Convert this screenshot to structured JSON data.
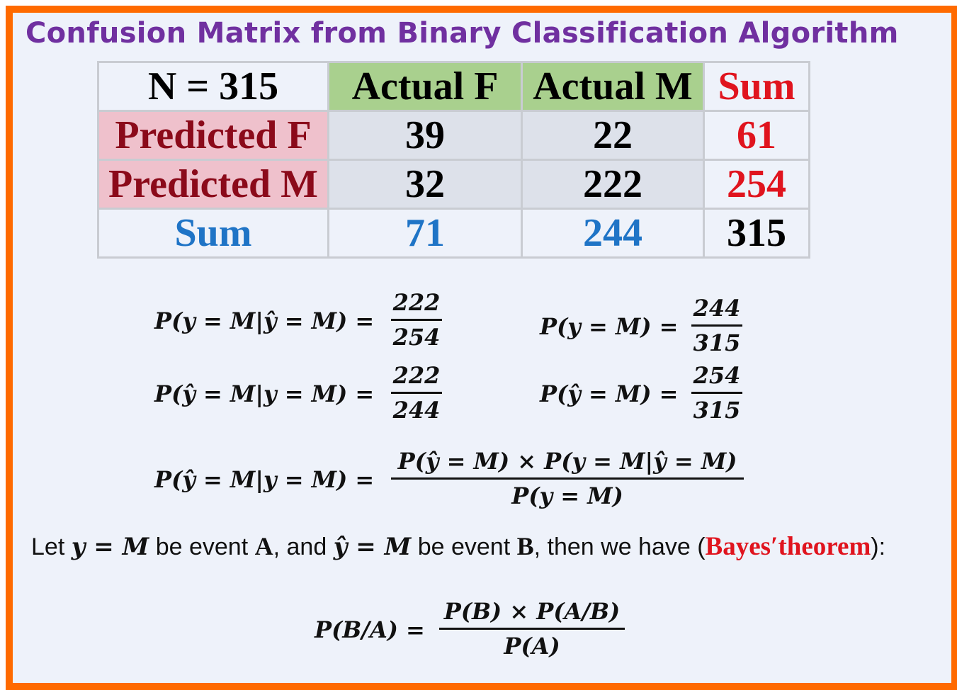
{
  "title": "Confusion Matrix from Binary Classification Algorithm",
  "table": {
    "corner": "N = 315",
    "col_headers": [
      "Actual F",
      "Actual M",
      "Sum"
    ],
    "rows": [
      {
        "label": "Predicted F",
        "values": [
          "39",
          "22"
        ],
        "sum": "61"
      },
      {
        "label": "Predicted M",
        "values": [
          "32",
          "222"
        ],
        "sum": "254"
      }
    ],
    "sum_row": {
      "label": "Sum",
      "values": [
        "71",
        "244"
      ],
      "total": "315"
    }
  },
  "formulas": {
    "f1_lhs": "P(y = M|ŷ = M) =",
    "f1_num": "222",
    "f1_den": "254",
    "f2_lhs": "P(y = M) =",
    "f2_num": "244",
    "f2_den": "315",
    "f3_lhs": "P(ŷ = M|y = M) =",
    "f3_num": "222",
    "f3_den": "244",
    "f4_lhs": "P(ŷ = M) =",
    "f4_num": "254",
    "f4_den": "315",
    "f5_lhs": "P(ŷ = M|y = M) =",
    "f5_num": "P(ŷ = M) × P(y = M|ŷ = M)",
    "f5_den": "P(y = M)"
  },
  "let_line": {
    "p1": "Let ",
    "m1": "y = M",
    "p2": " be event ",
    "b1": "A",
    "p3": ", and ",
    "m2": "ŷ = M",
    "p4": " be event ",
    "b2": "B",
    "p5": ", then we have (",
    "bayes": "Bayes′theorem",
    "p6": "):"
  },
  "bayes_formula": {
    "lhs": "P(B/A) =",
    "num": "P(B) × P(A/B)",
    "den": "P(A)"
  },
  "colors": {
    "border": "#ff6a00",
    "title": "#7030a0",
    "green_header": "#a9d08e",
    "pink_header": "#efc1cc",
    "red": "#e0141e",
    "blue": "#1f74c6"
  }
}
